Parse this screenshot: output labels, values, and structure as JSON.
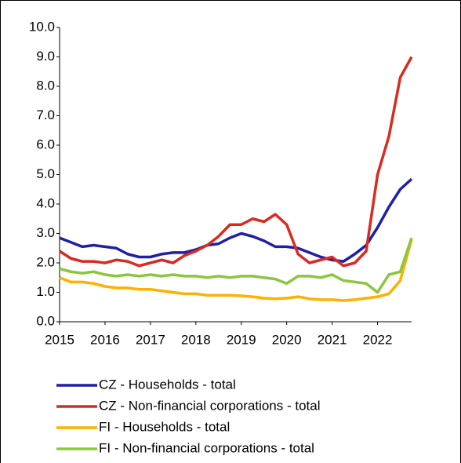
{
  "chart_data": {
    "type": "line",
    "x": [
      2015,
      2015.25,
      2015.5,
      2015.75,
      2016,
      2016.25,
      2016.5,
      2016.75,
      2017,
      2017.25,
      2017.5,
      2017.75,
      2018,
      2018.25,
      2018.5,
      2018.75,
      2019,
      2019.25,
      2019.5,
      2019.75,
      2020,
      2020.25,
      2020.5,
      2020.75,
      2021,
      2021.25,
      2021.5,
      2021.75,
      2022,
      2022.25,
      2022.5,
      2022.75
    ],
    "series": [
      {
        "name": "CZ - Households - total",
        "color": "#1f1fa8",
        "values": [
          2.85,
          2.7,
          2.55,
          2.6,
          2.55,
          2.5,
          2.3,
          2.2,
          2.2,
          2.3,
          2.35,
          2.35,
          2.45,
          2.6,
          2.65,
          2.85,
          3.0,
          2.9,
          2.75,
          2.55,
          2.55,
          2.5,
          2.35,
          2.2,
          2.1,
          2.05,
          2.3,
          2.6,
          3.2,
          3.9,
          4.5,
          4.85
        ]
      },
      {
        "name": "CZ - Non-financial corporations - total",
        "color": "#d92b1f",
        "values": [
          2.4,
          2.15,
          2.05,
          2.05,
          2.0,
          2.1,
          2.05,
          1.9,
          2.0,
          2.1,
          2.0,
          2.25,
          2.4,
          2.6,
          2.9,
          3.3,
          3.3,
          3.5,
          3.4,
          3.65,
          3.3,
          2.3,
          2.0,
          2.1,
          2.2,
          1.9,
          2.0,
          2.4,
          5.0,
          6.3,
          8.3,
          9.0
        ]
      },
      {
        "name": "FI - Households - total",
        "color": "#ffb000",
        "values": [
          1.5,
          1.35,
          1.35,
          1.3,
          1.2,
          1.15,
          1.15,
          1.1,
          1.1,
          1.05,
          1.0,
          0.95,
          0.95,
          0.9,
          0.9,
          0.9,
          0.88,
          0.85,
          0.8,
          0.78,
          0.8,
          0.85,
          0.78,
          0.75,
          0.75,
          0.72,
          0.75,
          0.8,
          0.85,
          0.95,
          1.4,
          2.8
        ]
      },
      {
        "name": "FI - Non-financial corporations - total",
        "color": "#8cc63f",
        "values": [
          1.8,
          1.7,
          1.65,
          1.7,
          1.6,
          1.55,
          1.6,
          1.55,
          1.6,
          1.55,
          1.6,
          1.55,
          1.55,
          1.5,
          1.55,
          1.5,
          1.55,
          1.55,
          1.5,
          1.45,
          1.3,
          1.55,
          1.55,
          1.5,
          1.6,
          1.4,
          1.35,
          1.3,
          1.0,
          1.6,
          1.7,
          2.85
        ]
      }
    ],
    "xlim": [
      2015,
      2022.75
    ],
    "xticks": [
      2015,
      2016,
      2017,
      2018,
      2019,
      2020,
      2021,
      2022
    ],
    "ylim": [
      0,
      10
    ],
    "yticks": [
      {
        "value": 0,
        "label": "0.0"
      },
      {
        "value": 1,
        "label": "1.0"
      },
      {
        "value": 2,
        "label": "2.0"
      },
      {
        "value": 3,
        "label": "3.0"
      },
      {
        "value": 4,
        "label": "4.0"
      },
      {
        "value": 5,
        "label": "5.0"
      },
      {
        "value": 6,
        "label": "6.0"
      },
      {
        "value": 7,
        "label": "7.0"
      },
      {
        "value": 8,
        "label": "8.0"
      },
      {
        "value": 9,
        "label": "9.0"
      },
      {
        "value": 10,
        "label": "10.0"
      }
    ],
    "grid": false
  }
}
